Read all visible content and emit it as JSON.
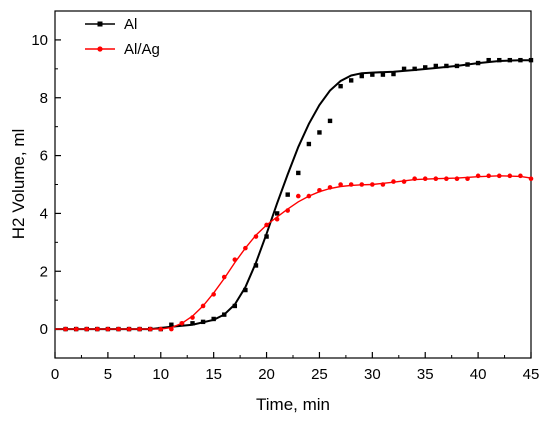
{
  "chart_data": {
    "type": "line",
    "title": "",
    "xlabel": "Time, min",
    "ylabel": "H2 Volume, ml",
    "xlim": [
      0,
      45
    ],
    "ylim": [
      -1,
      11
    ],
    "xticks": [
      0,
      5,
      10,
      15,
      20,
      25,
      30,
      35,
      40,
      45
    ],
    "yticks": [
      0,
      2,
      4,
      6,
      8,
      10
    ],
    "grid": false,
    "legend_position": "top-left",
    "series": [
      {
        "name": "Al",
        "color": "#000000",
        "marker": "square",
        "points": [
          [
            1,
            0
          ],
          [
            2,
            0
          ],
          [
            3,
            0
          ],
          [
            4,
            0
          ],
          [
            5,
            0
          ],
          [
            6,
            0
          ],
          [
            7,
            0
          ],
          [
            8,
            0
          ],
          [
            9,
            0
          ],
          [
            10,
            0
          ],
          [
            11,
            0.15
          ],
          [
            12,
            0.18
          ],
          [
            13,
            0.2
          ],
          [
            14,
            0.25
          ],
          [
            15,
            0.35
          ],
          [
            16,
            0.5
          ],
          [
            17,
            0.8
          ],
          [
            18,
            1.35
          ],
          [
            19,
            2.2
          ],
          [
            20,
            3.2
          ],
          [
            21,
            4.0
          ],
          [
            22,
            4.65
          ],
          [
            23,
            5.4
          ],
          [
            24,
            6.4
          ],
          [
            25,
            6.8
          ],
          [
            26,
            7.2
          ],
          [
            27,
            8.4
          ],
          [
            28,
            8.6
          ],
          [
            29,
            8.75
          ],
          [
            30,
            8.8
          ],
          [
            31,
            8.8
          ],
          [
            32,
            8.82
          ],
          [
            33,
            9.0
          ],
          [
            34,
            9.0
          ],
          [
            35,
            9.05
          ],
          [
            36,
            9.1
          ],
          [
            37,
            9.1
          ],
          [
            38,
            9.1
          ],
          [
            39,
            9.15
          ],
          [
            40,
            9.2
          ],
          [
            41,
            9.3
          ],
          [
            42,
            9.3
          ],
          [
            43,
            9.3
          ],
          [
            44,
            9.3
          ],
          [
            45,
            9.3
          ]
        ],
        "fit": [
          [
            0,
            0
          ],
          [
            9,
            0
          ],
          [
            11,
            0.08
          ],
          [
            13,
            0.15
          ],
          [
            15,
            0.32
          ],
          [
            16,
            0.5
          ],
          [
            17,
            0.85
          ],
          [
            18,
            1.45
          ],
          [
            19,
            2.3
          ],
          [
            20,
            3.3
          ],
          [
            21,
            4.35
          ],
          [
            22,
            5.35
          ],
          [
            23,
            6.3
          ],
          [
            24,
            7.1
          ],
          [
            25,
            7.75
          ],
          [
            26,
            8.25
          ],
          [
            27,
            8.58
          ],
          [
            28,
            8.77
          ],
          [
            29,
            8.85
          ],
          [
            30,
            8.87
          ],
          [
            32,
            8.9
          ],
          [
            34,
            8.96
          ],
          [
            36,
            9.03
          ],
          [
            38,
            9.1
          ],
          [
            40,
            9.2
          ],
          [
            42,
            9.27
          ],
          [
            44,
            9.3
          ],
          [
            45,
            9.3
          ]
        ]
      },
      {
        "name": "Al/Ag",
        "color": "#ff0000",
        "marker": "circle",
        "points": [
          [
            1,
            0
          ],
          [
            2,
            0
          ],
          [
            3,
            0
          ],
          [
            4,
            0
          ],
          [
            5,
            0
          ],
          [
            6,
            0
          ],
          [
            7,
            0
          ],
          [
            8,
            0
          ],
          [
            9,
            0
          ],
          [
            10,
            0
          ],
          [
            11,
            0
          ],
          [
            12,
            0.2
          ],
          [
            13,
            0.4
          ],
          [
            14,
            0.8
          ],
          [
            15,
            1.2
          ],
          [
            16,
            1.8
          ],
          [
            17,
            2.4
          ],
          [
            18,
            2.8
          ],
          [
            19,
            3.2
          ],
          [
            20,
            3.6
          ],
          [
            21,
            3.8
          ],
          [
            22,
            4.1
          ],
          [
            23,
            4.6
          ],
          [
            24,
            4.6
          ],
          [
            25,
            4.8
          ],
          [
            26,
            4.9
          ],
          [
            27,
            5.0
          ],
          [
            28,
            5.0
          ],
          [
            29,
            5.0
          ],
          [
            30,
            5.0
          ],
          [
            31,
            5.0
          ],
          [
            32,
            5.1
          ],
          [
            33,
            5.1
          ],
          [
            34,
            5.2
          ],
          [
            35,
            5.2
          ],
          [
            36,
            5.2
          ],
          [
            37,
            5.2
          ],
          [
            38,
            5.2
          ],
          [
            39,
            5.2
          ],
          [
            40,
            5.3
          ],
          [
            41,
            5.3
          ],
          [
            42,
            5.3
          ],
          [
            43,
            5.3
          ],
          [
            44,
            5.3
          ],
          [
            45,
            5.2
          ]
        ],
        "fit": [
          [
            0,
            0
          ],
          [
            10,
            0
          ],
          [
            11,
            0.05
          ],
          [
            12,
            0.2
          ],
          [
            13,
            0.45
          ],
          [
            14,
            0.8
          ],
          [
            15,
            1.25
          ],
          [
            16,
            1.75
          ],
          [
            17,
            2.3
          ],
          [
            18,
            2.8
          ],
          [
            19,
            3.25
          ],
          [
            20,
            3.6
          ],
          [
            21,
            3.88
          ],
          [
            22,
            4.15
          ],
          [
            23,
            4.4
          ],
          [
            24,
            4.6
          ],
          [
            25,
            4.75
          ],
          [
            26,
            4.86
          ],
          [
            27,
            4.93
          ],
          [
            28,
            4.97
          ],
          [
            29,
            4.99
          ],
          [
            30,
            5.0
          ],
          [
            32,
            5.08
          ],
          [
            34,
            5.17
          ],
          [
            36,
            5.2
          ],
          [
            38,
            5.22
          ],
          [
            40,
            5.27
          ],
          [
            42,
            5.3
          ],
          [
            44,
            5.28
          ],
          [
            45,
            5.22
          ]
        ]
      }
    ]
  }
}
